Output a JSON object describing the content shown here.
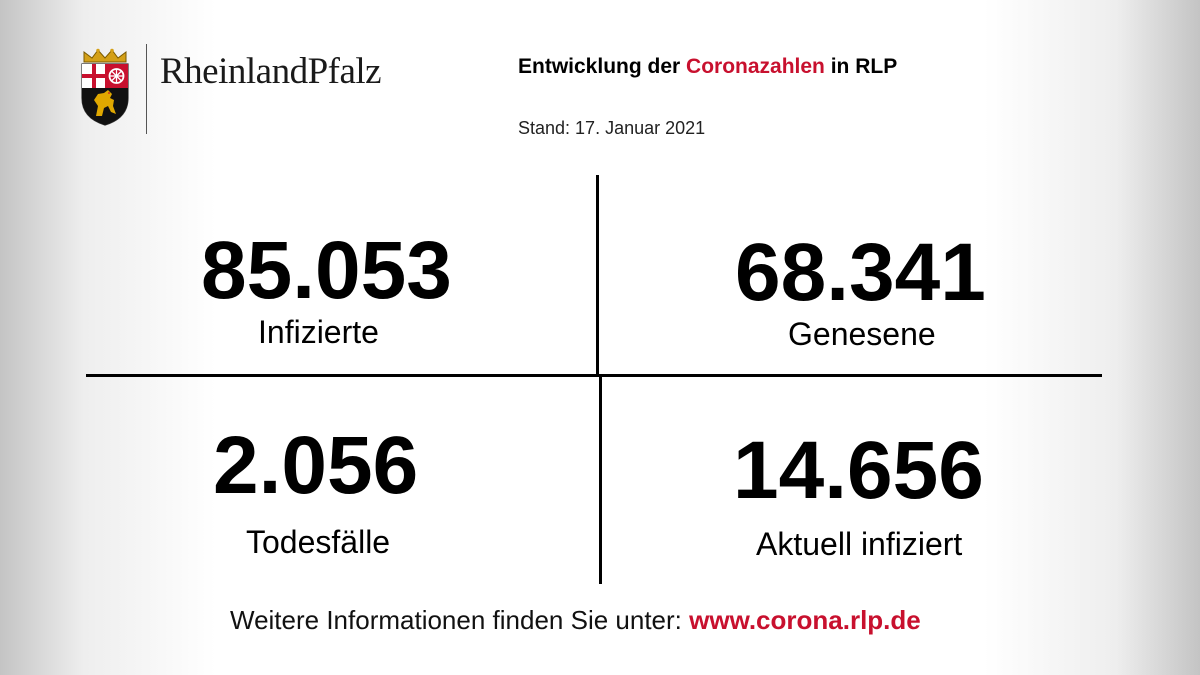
{
  "logo": {
    "wordmark": "RheinlandPfalz",
    "crest_icon": "rlp-coat-of-arms-icon"
  },
  "header": {
    "title_prefix": "Entwicklung der ",
    "title_highlight": "Coronazahlen",
    "title_suffix": " in RLP",
    "stand": "Stand: 17. Januar 2021"
  },
  "stats": {
    "infizierte": {
      "value": "85.053",
      "label": "Infizierte"
    },
    "genesene": {
      "value": "68.341",
      "label": "Genesene"
    },
    "todesfaelle": {
      "value": "2.056",
      "label": "Todesfälle"
    },
    "aktuell": {
      "value": "14.656",
      "label": "Aktuell infiziert"
    }
  },
  "footer": {
    "text": "Weitere Informationen finden Sie unter: ",
    "link": "www.corona.rlp.de"
  },
  "colors": {
    "accent_red": "#c8102e",
    "text": "#000000"
  }
}
